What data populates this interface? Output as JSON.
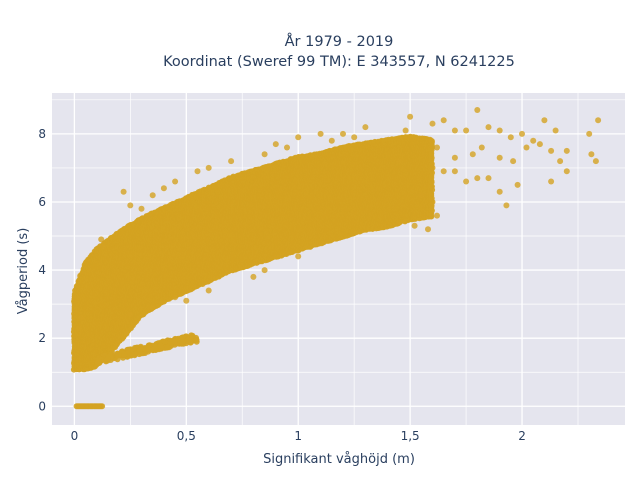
{
  "chart_data": {
    "type": "scatter",
    "title": "År 1979 - 2019",
    "subtitle": "Koordinat (Sweref 99 TM): E 343557, N 6241225",
    "xlabel": "Signifikant våghöjd (m)",
    "ylabel": "Vågperiod (s)",
    "xlim": [
      -0.1,
      2.46
    ],
    "ylim": [
      -0.55,
      9.2
    ],
    "x_ticks": [
      0,
      0.5,
      1,
      1.5,
      2
    ],
    "x_tick_labels": [
      "0",
      "0,5",
      "1",
      "1,5",
      "2"
    ],
    "y_ticks": [
      0,
      2,
      4,
      6,
      8
    ],
    "y_tick_labels": [
      "0",
      "2",
      "4",
      "6",
      "8"
    ],
    "grid": true,
    "legend": "none",
    "marker_color": "#D4A322",
    "plot_background": "#E5E5EE",
    "series": [
      {
        "name": "",
        "envelope_upper": [
          [
            0.0,
            3.3
          ],
          [
            0.05,
            4.2
          ],
          [
            0.1,
            4.6
          ],
          [
            0.2,
            5.1
          ],
          [
            0.3,
            5.5
          ],
          [
            0.4,
            5.8
          ],
          [
            0.5,
            6.1
          ],
          [
            0.6,
            6.4
          ],
          [
            0.7,
            6.7
          ],
          [
            0.8,
            6.9
          ],
          [
            0.9,
            7.1
          ],
          [
            1.0,
            7.3
          ],
          [
            1.1,
            7.4
          ],
          [
            1.2,
            7.6
          ],
          [
            1.3,
            7.7
          ],
          [
            1.4,
            7.8
          ],
          [
            1.5,
            7.9
          ],
          [
            1.6,
            7.8
          ]
        ],
        "envelope_lower": [
          [
            0.0,
            1.1
          ],
          [
            0.05,
            1.1
          ],
          [
            0.1,
            1.2
          ],
          [
            0.2,
            1.9
          ],
          [
            0.3,
            2.7
          ],
          [
            0.4,
            3.1
          ],
          [
            0.5,
            3.4
          ],
          [
            0.6,
            3.7
          ],
          [
            0.7,
            4.0
          ],
          [
            0.8,
            4.2
          ],
          [
            0.9,
            4.4
          ],
          [
            1.0,
            4.6
          ],
          [
            1.1,
            4.8
          ],
          [
            1.2,
            5.0
          ],
          [
            1.3,
            5.2
          ],
          [
            1.4,
            5.3
          ],
          [
            1.5,
            5.5
          ],
          [
            1.6,
            5.6
          ]
        ],
        "low_period_branch": [
          [
            0.1,
            1.35
          ],
          [
            0.2,
            1.5
          ],
          [
            0.3,
            1.65
          ],
          [
            0.4,
            1.8
          ],
          [
            0.5,
            1.95
          ],
          [
            0.55,
            2.0
          ]
        ],
        "zero_period_run": {
          "x_from": 0.01,
          "x_to": 0.13,
          "y": 0.0
        },
        "outliers": [
          [
            1.6,
            8.3
          ],
          [
            1.65,
            8.4
          ],
          [
            1.7,
            8.1
          ],
          [
            1.75,
            8.1
          ],
          [
            1.8,
            8.7
          ],
          [
            1.85,
            8.2
          ],
          [
            1.9,
            8.1
          ],
          [
            1.95,
            7.9
          ],
          [
            2.0,
            8.0
          ],
          [
            2.05,
            7.8
          ],
          [
            2.1,
            8.4
          ],
          [
            2.15,
            8.1
          ],
          [
            2.2,
            7.5
          ],
          [
            2.3,
            8.0
          ],
          [
            2.34,
            8.4
          ],
          [
            1.62,
            7.6
          ],
          [
            1.7,
            7.3
          ],
          [
            1.78,
            7.4
          ],
          [
            1.82,
            7.6
          ],
          [
            1.9,
            7.3
          ],
          [
            1.96,
            7.2
          ],
          [
            2.02,
            7.6
          ],
          [
            2.08,
            7.7
          ],
          [
            2.13,
            7.5
          ],
          [
            2.17,
            7.2
          ],
          [
            2.31,
            7.4
          ],
          [
            2.33,
            7.2
          ],
          [
            1.6,
            7.0
          ],
          [
            1.65,
            6.9
          ],
          [
            1.7,
            6.9
          ],
          [
            1.75,
            6.6
          ],
          [
            1.8,
            6.7
          ],
          [
            1.85,
            6.7
          ],
          [
            1.9,
            6.3
          ],
          [
            1.98,
            6.5
          ],
          [
            2.2,
            6.9
          ],
          [
            2.13,
            6.6
          ],
          [
            1.93,
            5.9
          ],
          [
            1.5,
            8.5
          ],
          [
            1.48,
            8.1
          ],
          [
            1.45,
            7.2
          ],
          [
            1.55,
            6.2
          ],
          [
            1.6,
            6.0
          ],
          [
            1.62,
            5.6
          ],
          [
            1.58,
            5.2
          ],
          [
            1.52,
            5.3
          ],
          [
            1.45,
            5.4
          ],
          [
            1.2,
            8.0
          ],
          [
            1.25,
            7.9
          ],
          [
            1.3,
            8.2
          ],
          [
            1.1,
            8.0
          ],
          [
            1.15,
            7.8
          ],
          [
            1.0,
            7.9
          ],
          [
            0.95,
            7.6
          ],
          [
            0.9,
            7.7
          ],
          [
            0.85,
            7.4
          ],
          [
            0.7,
            7.2
          ],
          [
            0.6,
            7.0
          ],
          [
            0.55,
            6.9
          ],
          [
            0.45,
            6.6
          ],
          [
            0.4,
            6.4
          ],
          [
            0.35,
            6.2
          ],
          [
            0.22,
            6.3
          ],
          [
            0.25,
            5.9
          ],
          [
            0.3,
            5.8
          ],
          [
            0.12,
            4.9
          ],
          [
            0.13,
            4.7
          ],
          [
            0.02,
            2.3
          ],
          [
            0.03,
            2.6
          ],
          [
            0.25,
            2.7
          ],
          [
            0.35,
            2.9
          ],
          [
            0.45,
            3.2
          ],
          [
            0.5,
            3.1
          ],
          [
            0.6,
            3.4
          ],
          [
            0.8,
            3.8
          ],
          [
            0.85,
            4.0
          ],
          [
            1.0,
            4.4
          ]
        ]
      }
    ]
  }
}
